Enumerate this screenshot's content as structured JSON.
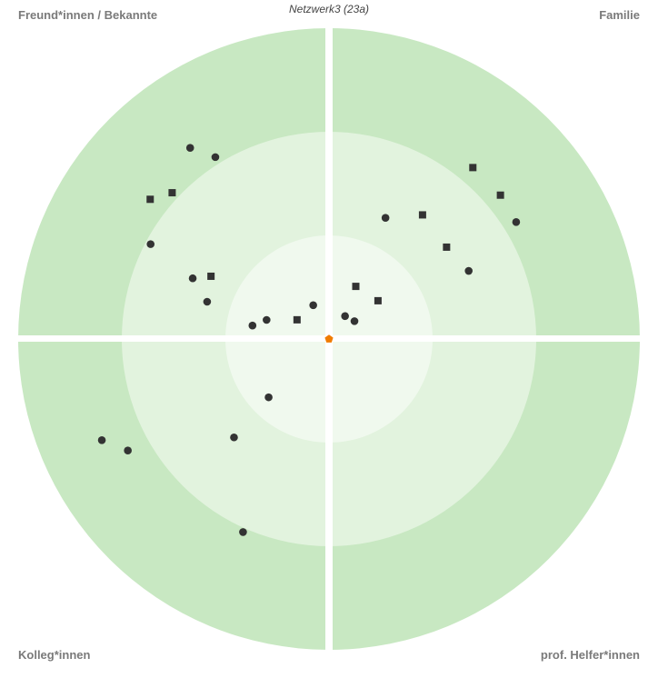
{
  "title": "Netzwerk3 (23a)",
  "quadrants": {
    "top_left": "Freund*innen / Bekannte",
    "top_right": "Familie",
    "bottom_left": "Kolleg*innen",
    "bottom_right": "prof. Helfer*innen"
  },
  "colors": {
    "outer_ring": "#c8e8c2",
    "middle_ring": "#e2f3de",
    "inner_ring": "#f0f9ee",
    "divider": "#ffffff",
    "person": "#333333",
    "ego": "#f07c00"
  },
  "people": [
    {
      "quadrant": "top_left",
      "shape": "circle",
      "distance": 0.76,
      "angle_deg": 54
    },
    {
      "quadrant": "top_left",
      "shape": "square",
      "distance": 0.69,
      "angle_deg": 43
    },
    {
      "quadrant": "top_left",
      "shape": "circle",
      "distance": 0.69,
      "angle_deg": 58
    },
    {
      "quadrant": "top_left",
      "shape": "square",
      "distance": 0.73,
      "angle_deg": 38
    },
    {
      "quadrant": "top_left",
      "shape": "circle",
      "distance": 0.65,
      "angle_deg": 28
    },
    {
      "quadrant": "top_left",
      "shape": "square",
      "distance": 0.43,
      "angle_deg": 28
    },
    {
      "quadrant": "top_left",
      "shape": "circle",
      "distance": 0.48,
      "angle_deg": 24
    },
    {
      "quadrant": "top_left",
      "shape": "circle",
      "distance": 0.41,
      "angle_deg": 17
    },
    {
      "quadrant": "top_left",
      "shape": "circle",
      "distance": 0.25,
      "angle_deg": 10
    },
    {
      "quadrant": "top_left",
      "shape": "circle",
      "distance": 0.21,
      "angle_deg": 17
    },
    {
      "quadrant": "top_left",
      "shape": "square",
      "distance": 0.12,
      "angle_deg": 31
    },
    {
      "quadrant": "top_left",
      "shape": "circle",
      "distance": 0.12,
      "angle_deg": 65
    },
    {
      "quadrant": "top_right",
      "shape": "circle",
      "distance": 0.71,
      "angle_deg": 32
    },
    {
      "quadrant": "top_right",
      "shape": "square",
      "distance": 0.72,
      "angle_deg": 40
    },
    {
      "quadrant": "top_right",
      "shape": "square",
      "distance": 0.72,
      "angle_deg": 50
    },
    {
      "quadrant": "top_right",
      "shape": "circle",
      "distance": 0.5,
      "angle_deg": 26
    },
    {
      "quadrant": "top_right",
      "shape": "square",
      "distance": 0.48,
      "angle_deg": 38
    },
    {
      "quadrant": "top_right",
      "shape": "square",
      "distance": 0.5,
      "angle_deg": 53
    },
    {
      "quadrant": "top_right",
      "shape": "circle",
      "distance": 0.43,
      "angle_deg": 65
    },
    {
      "quadrant": "top_right",
      "shape": "square",
      "distance": 0.2,
      "angle_deg": 38
    },
    {
      "quadrant": "top_right",
      "shape": "square",
      "distance": 0.19,
      "angle_deg": 63
    },
    {
      "quadrant": "top_right",
      "shape": "circle",
      "distance": 0.1,
      "angle_deg": 35
    },
    {
      "quadrant": "top_right",
      "shape": "circle",
      "distance": 0.09,
      "angle_deg": 55
    },
    {
      "quadrant": "bottom_left",
      "shape": "circle",
      "distance": 0.27,
      "angle_deg": 44
    },
    {
      "quadrant": "bottom_left",
      "shape": "circle",
      "distance": 0.68,
      "angle_deg": 66
    },
    {
      "quadrant": "bottom_left",
      "shape": "circle",
      "distance": 0.44,
      "angle_deg": 46
    },
    {
      "quadrant": "bottom_left",
      "shape": "circle",
      "distance": 0.74,
      "angle_deg": 29
    },
    {
      "quadrant": "bottom_left",
      "shape": "circle",
      "distance": 0.8,
      "angle_deg": 24
    }
  ]
}
